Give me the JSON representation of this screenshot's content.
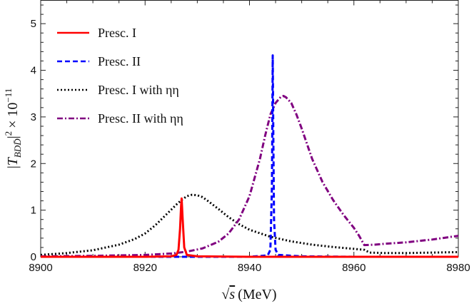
{
  "chart_data": {
    "type": "line",
    "xlabel": "√s (MeV)",
    "ylabel": "|T_BDD̄|² × 10⁻¹¹",
    "xlim": [
      8900,
      8980
    ],
    "ylim": [
      0,
      5.5
    ],
    "x_ticks": [
      8900,
      8920,
      8940,
      8960,
      8980
    ],
    "y_ticks": [
      0,
      1,
      2,
      3,
      4,
      5
    ],
    "grid": false,
    "legend_position": "top-left",
    "series": [
      {
        "name": "Presc. I",
        "color": "#ff0000",
        "style": "solid",
        "x": [
          8900,
          8920,
          8925,
          8926,
          8926.4,
          8926.7,
          8926.9,
          8927.0,
          8927.2,
          8927.5,
          8928,
          8930,
          8940,
          8960,
          8980
        ],
        "y": [
          0.0,
          0.0,
          0.01,
          0.04,
          0.15,
          0.6,
          1.1,
          1.25,
          0.8,
          0.2,
          0.04,
          0.01,
          0.0,
          0.0,
          0.0
        ]
      },
      {
        "name": "Presc. II",
        "color": "#0000ff",
        "style": "dashed",
        "x": [
          8900,
          8920,
          8940,
          8943.5,
          8944.0,
          8944.3,
          8944.45,
          8944.55,
          8944.7,
          8945.0,
          8945.5,
          8950,
          8960,
          8980
        ],
        "y": [
          0.0,
          0.0,
          0.0,
          0.03,
          0.15,
          1.5,
          4.32,
          2.8,
          0.8,
          0.15,
          0.04,
          0.01,
          0.0,
          0.0
        ]
      },
      {
        "name": "Presc. I  with ηη",
        "color": "#000000",
        "style": "dotted",
        "x": [
          8900,
          8905,
          8910,
          8915,
          8918,
          8920,
          8922,
          8924,
          8926,
          8927,
          8928,
          8929,
          8930,
          8931,
          8932,
          8934,
          8936,
          8938,
          8940,
          8944,
          8948,
          8952,
          8956,
          8960,
          8962,
          8963,
          8966,
          8970,
          8975,
          8980
        ],
        "y": [
          0.04,
          0.08,
          0.14,
          0.26,
          0.38,
          0.5,
          0.68,
          0.9,
          1.12,
          1.22,
          1.3,
          1.33,
          1.32,
          1.28,
          1.2,
          1.03,
          0.85,
          0.7,
          0.58,
          0.43,
          0.33,
          0.26,
          0.21,
          0.17,
          0.15,
          0.09,
          0.08,
          0.08,
          0.09,
          0.1
        ]
      },
      {
        "name": "Presc. II  with ηη",
        "color": "#800080",
        "style": "dashdot",
        "x": [
          8900,
          8910,
          8920,
          8925,
          8928,
          8931,
          8934,
          8936,
          8938,
          8940,
          8942,
          8943,
          8944,
          8945,
          8946,
          8946.5,
          8947,
          8948,
          8949,
          8950,
          8952,
          8954,
          8956,
          8958,
          8960,
          8961,
          8962,
          8964,
          8966,
          8970,
          8975,
          8980
        ],
        "y": [
          0.01,
          0.02,
          0.04,
          0.07,
          0.11,
          0.18,
          0.32,
          0.5,
          0.8,
          1.3,
          2.1,
          2.6,
          3.05,
          3.3,
          3.43,
          3.45,
          3.42,
          3.3,
          3.05,
          2.75,
          2.1,
          1.6,
          1.22,
          0.9,
          0.62,
          0.45,
          0.25,
          0.26,
          0.28,
          0.31,
          0.37,
          0.45
        ]
      }
    ]
  }
}
